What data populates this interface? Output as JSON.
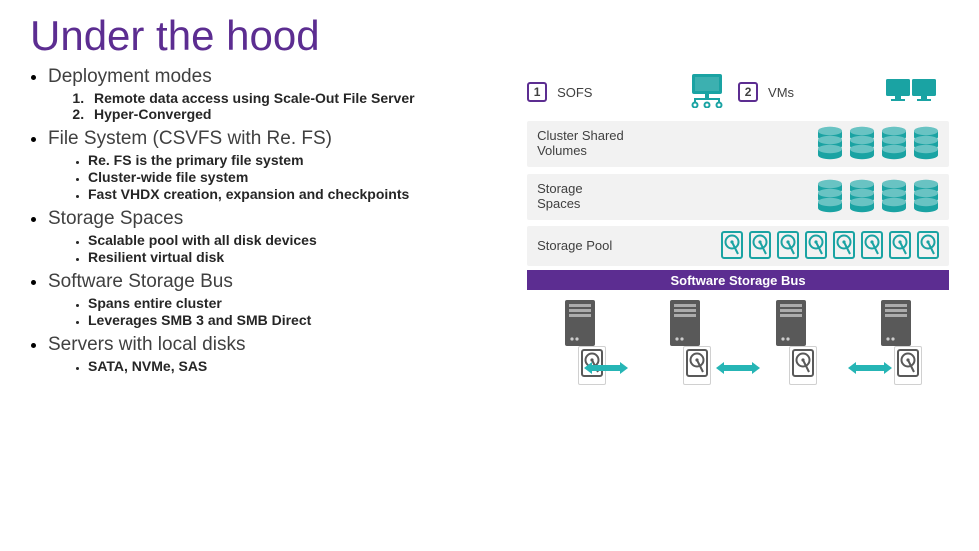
{
  "colors": {
    "title": "#5c2d91",
    "accent": "#5c2d91",
    "busBg": "#5c2d91",
    "busText": "#ffffff",
    "layerBg": "#f2f2f2",
    "iconTeal": "#1aa3a3",
    "iconGray": "#595959",
    "arrow": "#26b5b5",
    "badgeBorder": "#5c2d91",
    "badgeBg": "#ffffff",
    "badgeText": "#404040",
    "bodyText": "#404040",
    "subText": "#262626"
  },
  "title": "Under the hood",
  "bullets": [
    {
      "head": "Deployment modes",
      "numbered": [
        "Remote data access using Scale-Out File Server",
        "Hyper-Converged"
      ]
    },
    {
      "head": "File System (CSVFS with Re. FS)",
      "sub": [
        "Re. FS is the primary file system",
        "Cluster-wide file system",
        "Fast VHDX creation, expansion and checkpoints"
      ]
    },
    {
      "head": "Storage Spaces",
      "sub": [
        "Scalable pool with all disk devices",
        "Resilient virtual disk"
      ]
    },
    {
      "head": "Software Storage Bus",
      "sub": [
        "Spans entire cluster",
        "Leverages SMB 3 and SMB Direct"
      ]
    },
    {
      "head": "Servers with local disks",
      "sub": [
        "SATA, NVMe, SAS"
      ]
    }
  ],
  "diagram": {
    "badge1": "1",
    "badge2": "2",
    "topLabels": {
      "left": "SOFS",
      "right": "VMs"
    },
    "layers": [
      {
        "label": "Cluster Shared Volumes",
        "icon": "dbstack",
        "count": 4
      },
      {
        "label": "Storage Spaces",
        "icon": "dbstack",
        "count": 4
      },
      {
        "label": "Storage Pool",
        "icon": "hdd",
        "count": 8
      }
    ],
    "busLabel": "Software Storage Bus",
    "serverCount": 4,
    "bottomDiskCount": 4
  },
  "layout": {
    "topRowY": 5,
    "layerYs": [
      55,
      108,
      160
    ],
    "layerH": 46,
    "poolH": 40,
    "busY": 204,
    "serversY": 232,
    "arrowsY": 295,
    "disksY": 280
  }
}
